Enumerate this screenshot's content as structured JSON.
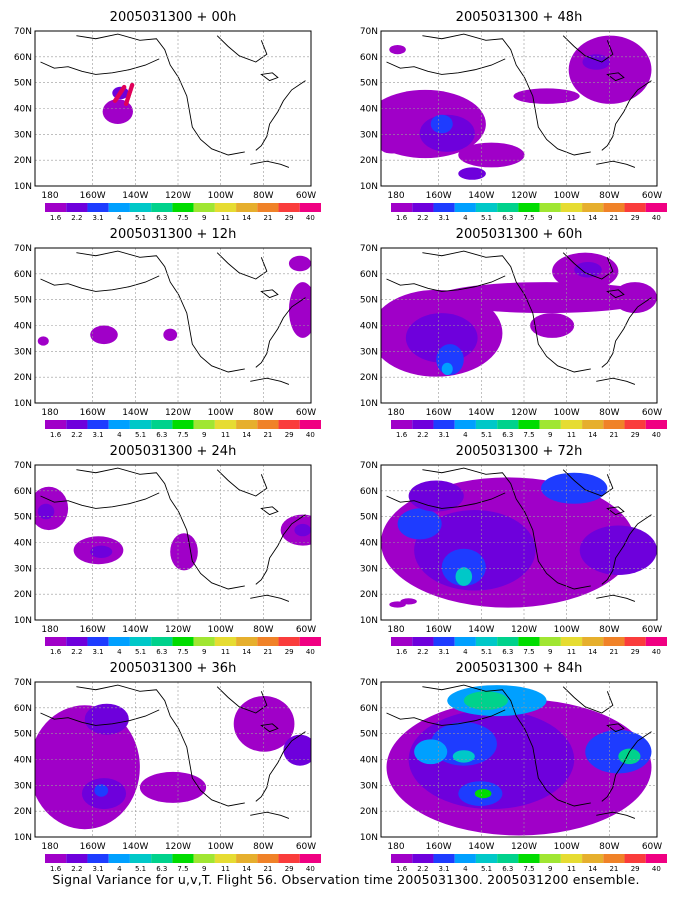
{
  "caption": "Signal Variance for u,v,T. Flight 56. Observation time 2005031300. 2005031200 ensemble.",
  "x_tick_labels": [
    "180",
    "160W",
    "140W",
    "120W",
    "100W",
    "80W",
    "60W"
  ],
  "y_tick_labels": [
    "10N",
    "20N",
    "30N",
    "40N",
    "50N",
    "60N",
    "70N"
  ],
  "colorbar_labels": [
    "1.6",
    "2.2",
    "3.1",
    "4",
    "5.1",
    "6.3",
    "7.5",
    "9",
    "11",
    "14",
    "21",
    "29",
    "40"
  ],
  "colorbar_colors": [
    "#a000c8",
    "#6e00dc",
    "#1e3cff",
    "#00a0ff",
    "#00c8c8",
    "#00d28c",
    "#00dc00",
    "#a0e632",
    "#e6dc32",
    "#e6af2d",
    "#f08228",
    "#fa3c3c",
    "#f00082"
  ],
  "panels": [
    {
      "title": "2005031300 + 00h"
    },
    {
      "title": "2005031300 + 48h"
    },
    {
      "title": "2005031300 + 12h"
    },
    {
      "title": "2005031300 + 60h"
    },
    {
      "title": "2005031300 + 24h"
    },
    {
      "title": "2005031300 + 72h"
    },
    {
      "title": "2005031300 + 36h"
    },
    {
      "title": "2005031300 + 84h"
    }
  ]
}
